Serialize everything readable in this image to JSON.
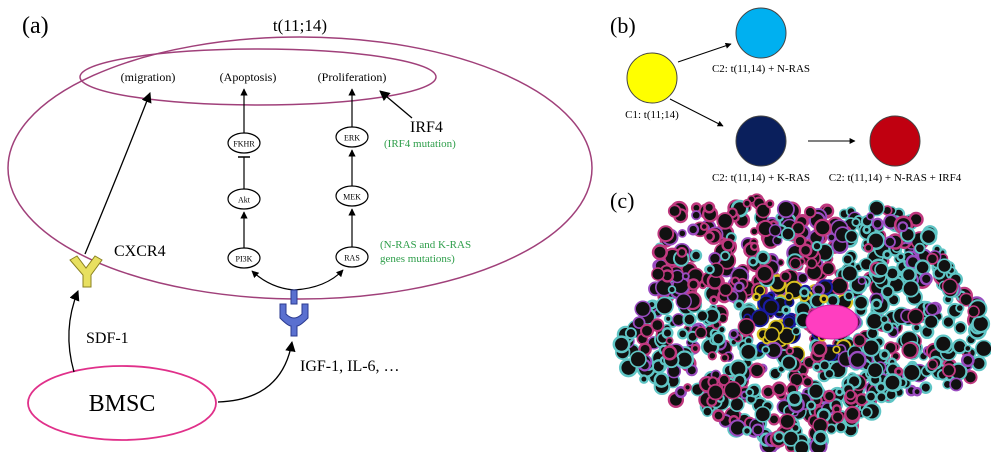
{
  "panel_a": {
    "label": "(a)",
    "cell_title": "t(11;14)",
    "outcomes": {
      "migration": "(migration)",
      "apoptosis": "(Apoptosis)",
      "proliferation": "(Proliferation)"
    },
    "irf4": {
      "label": "IRF4",
      "mutation_note": "(IRF4 mutation)"
    },
    "pi3k_pathway": {
      "fkhr": "FKHR",
      "akt": "Akt",
      "pi3k": "PI3K"
    },
    "mapk_pathway": {
      "erk": "ERK",
      "mek": "MEK",
      "ras": "RAS"
    },
    "ras_mutation_note": {
      "line1": "(N-RAS and K-RAS",
      "line2": "genes mutations)"
    },
    "receptors": {
      "cxcr4": "CXCR4"
    },
    "ligands": {
      "sdf1": "SDF-1",
      "igf_il6": "IGF-1, IL-6, …"
    },
    "bmsc": "BMSC",
    "colors": {
      "cell_membrane": "#a0407a",
      "bmsc_outline": "#e0308a",
      "cxcr4_receptor": "#e8e060",
      "igf_receptor": "#5a70d0",
      "mutation_text": "#2e9e4a"
    }
  },
  "panel_b": {
    "label": "(b)",
    "c1": "C1: t(11;14)",
    "c2_nras": "C2: t(11,14) + N-RAS",
    "c2_kras": "C2: t(11,14) + K-RAS",
    "c2_nras_irf4": "C2: t(11,14) + N-RAS + IRF4",
    "colors": {
      "c1": "#ffff00",
      "c2_nras": "#00b0f0",
      "c2_kras": "#0a1f5c",
      "c2_nras_irf4": "#c00010"
    }
  },
  "panel_c": {
    "label": "(c)",
    "colors": {
      "magenta": "#c0397f",
      "cyan": "#5fc5c5",
      "purple": "#9a4cc0",
      "yellow": "#d8c020",
      "blue": "#1a1aa0",
      "center": "#ff3ec0"
    }
  }
}
